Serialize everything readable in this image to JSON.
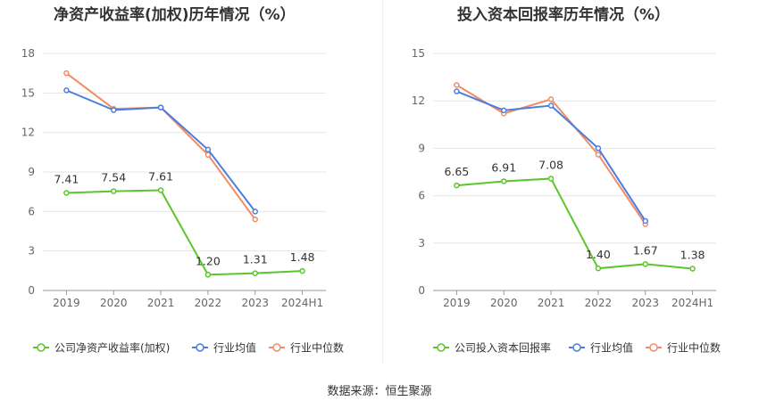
{
  "charts": [
    {
      "title": "净资产收益率(加权)历年情况（%）",
      "chart_data": {
        "type": "line",
        "title": "净资产收益率(加权)历年情况（%）",
        "categories": [
          "2019",
          "2020",
          "2021",
          "2022",
          "2023",
          "2024H1"
        ],
        "ylim": [
          0,
          18
        ],
        "yticks": [
          0,
          3,
          6,
          9,
          12,
          15,
          18
        ],
        "grid": true,
        "legend_position": "bottom",
        "series": [
          {
            "name": "公司净资产收益率(加权)",
            "color": "#5ac52c",
            "values": [
              7.41,
              7.54,
              7.61,
              1.2,
              1.31,
              1.48
            ],
            "labels": [
              "7.41",
              "7.54",
              "7.61",
              "1.20",
              "1.31",
              "1.48"
            ]
          },
          {
            "name": "行业均值",
            "color": "#4a7ee0",
            "values": [
              15.2,
              13.7,
              13.9,
              10.7,
              6.0,
              null
            ]
          },
          {
            "name": "行业中位数",
            "color": "#f28c64",
            "values": [
              16.5,
              13.8,
              13.9,
              10.3,
              5.4,
              null
            ]
          }
        ]
      }
    },
    {
      "title": "投入资本回报率历年情况（%）",
      "chart_data": {
        "type": "line",
        "title": "投入资本回报率历年情况（%）",
        "categories": [
          "2019",
          "2020",
          "2021",
          "2022",
          "2023",
          "2024H1"
        ],
        "ylim": [
          0,
          15
        ],
        "yticks": [
          0,
          3,
          6,
          9,
          12,
          15
        ],
        "grid": true,
        "legend_position": "bottom",
        "series": [
          {
            "name": "公司投入资本回报率",
            "color": "#5ac52c",
            "values": [
              6.65,
              6.91,
              7.08,
              1.4,
              1.67,
              1.38
            ],
            "labels": [
              "6.65",
              "6.91",
              "7.08",
              "1.40",
              "1.67",
              "1.38"
            ]
          },
          {
            "name": "行业均值",
            "color": "#4a7ee0",
            "values": [
              12.6,
              11.4,
              11.7,
              9.0,
              4.4,
              null
            ]
          },
          {
            "name": "行业中位数",
            "color": "#f28c64",
            "values": [
              13.0,
              11.2,
              12.1,
              8.6,
              4.2,
              null
            ]
          }
        ]
      }
    }
  ],
  "footer": {
    "source": "数据来源：恒生聚源"
  }
}
